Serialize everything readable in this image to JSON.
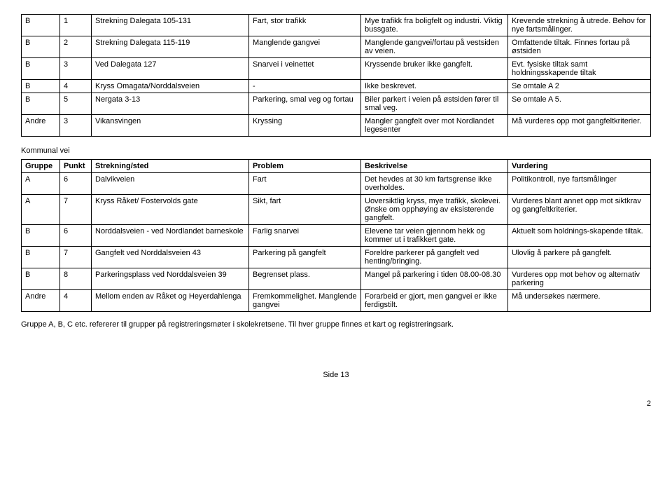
{
  "table1": {
    "rows": [
      {
        "gruppe": "B",
        "punkt": "1",
        "strekning": "Strekning Dalegata 105-131",
        "problem": "Fart, stor trafikk",
        "beskrivelse": "Mye trafikk fra boligfelt og industri. Viktig bussgate.",
        "vurdering": "Krevende strekning å utrede. Behov for nye fartsmålinger."
      },
      {
        "gruppe": "B",
        "punkt": "2",
        "strekning": "Strekning Dalegata 115-119",
        "problem": "Manglende gangvei",
        "beskrivelse": "Manglende gangvei/fortau på vestsiden av veien.",
        "vurdering": "Omfattende tiltak. Finnes fortau på østsiden"
      },
      {
        "gruppe": "B",
        "punkt": "3",
        "strekning": "Ved Dalegata 127",
        "problem": "Snarvei i veinettet",
        "beskrivelse": "Kryssende bruker ikke gangfelt.",
        "vurdering": "Evt. fysiske tiltak samt holdningsskapende tiltak"
      },
      {
        "gruppe": "B",
        "punkt": "4",
        "strekning": "Kryss Omagata/Norddalsveien",
        "problem": "-",
        "beskrivelse": "Ikke beskrevet.",
        "vurdering": "Se omtale A 2"
      },
      {
        "gruppe": "B",
        "punkt": "5",
        "strekning": "Nergata 3-13",
        "problem": "Parkering, smal veg og fortau",
        "beskrivelse": "Biler parkert i veien på østsiden fører til smal veg.",
        "vurdering": "Se omtale A 5."
      },
      {
        "gruppe": "Andre",
        "punkt": "3",
        "strekning": "Vikansvingen",
        "problem": "Kryssing",
        "beskrivelse": "Mangler gangfelt over mot Nordlandet legesenter",
        "vurdering": "Må vurderes opp mot gangfeltkriterier."
      }
    ]
  },
  "section2": {
    "title": "Kommunal vei"
  },
  "table2": {
    "headers": {
      "gruppe": "Gruppe",
      "punkt": "Punkt",
      "strekning": "Strekning/sted",
      "problem": "Problem",
      "beskrivelse": "Beskrivelse",
      "vurdering": "Vurdering"
    },
    "rows": [
      {
        "gruppe": "A",
        "punkt": "6",
        "strekning": "Dalvikveien",
        "problem": "Fart",
        "beskrivelse": "Det hevdes at 30 km fartsgrense ikke overholdes.",
        "vurdering": "Politikontroll, nye fartsmålinger"
      },
      {
        "gruppe": "A",
        "punkt": "7",
        "strekning": "Kryss Råket/ Fostervolds gate",
        "problem": "Sikt, fart",
        "beskrivelse": "Uoversiktlig kryss, mye trafikk, skolevei. Ønske om opphøying av eksisterende gangfelt.",
        "vurdering": "Vurderes blant annet opp mot siktkrav og gangfeltkriterier."
      },
      {
        "gruppe": "B",
        "punkt": "6",
        "strekning": "Norddalsveien - ved Nordlandet barneskole",
        "problem": "Farlig snarvei",
        "beskrivelse": "Elevene tar veien gjennom hekk og kommer ut i trafikkert gate.",
        "vurdering": "Aktuelt som holdnings-skapende tiltak."
      },
      {
        "gruppe": "B",
        "punkt": "7",
        "strekning": "Gangfelt ved Norddalsveien 43",
        "problem": "Parkering på gangfelt",
        "beskrivelse": "Foreldre parkerer på gangfelt ved henting/bringing.",
        "vurdering": "Ulovlig å parkere på gangfelt."
      },
      {
        "gruppe": "B",
        "punkt": "8",
        "strekning": "Parkeringsplass ved Norddalsveien 39",
        "problem": "Begrenset plass.",
        "beskrivelse": "Mangel på parkering i tiden 08.00-08.30",
        "vurdering": "Vurderes opp mot behov og alternativ parkering"
      },
      {
        "gruppe": "Andre",
        "punkt": "4",
        "strekning": "Mellom enden av Råket og Heyerdahlenga",
        "problem": "Fremkommelighet. Manglende gangvei",
        "beskrivelse": "Forarbeid er gjort, men gangvei er ikke ferdigstilt.",
        "vurdering": "Må undersøkes nærmere."
      }
    ]
  },
  "footnote": "Gruppe A, B, C etc. refererer til grupper på registreringsmøter i skolekretsene. Til hver gruppe finnes et kart og registreringsark.",
  "page_label": "Side 13",
  "page_num_right": "2"
}
